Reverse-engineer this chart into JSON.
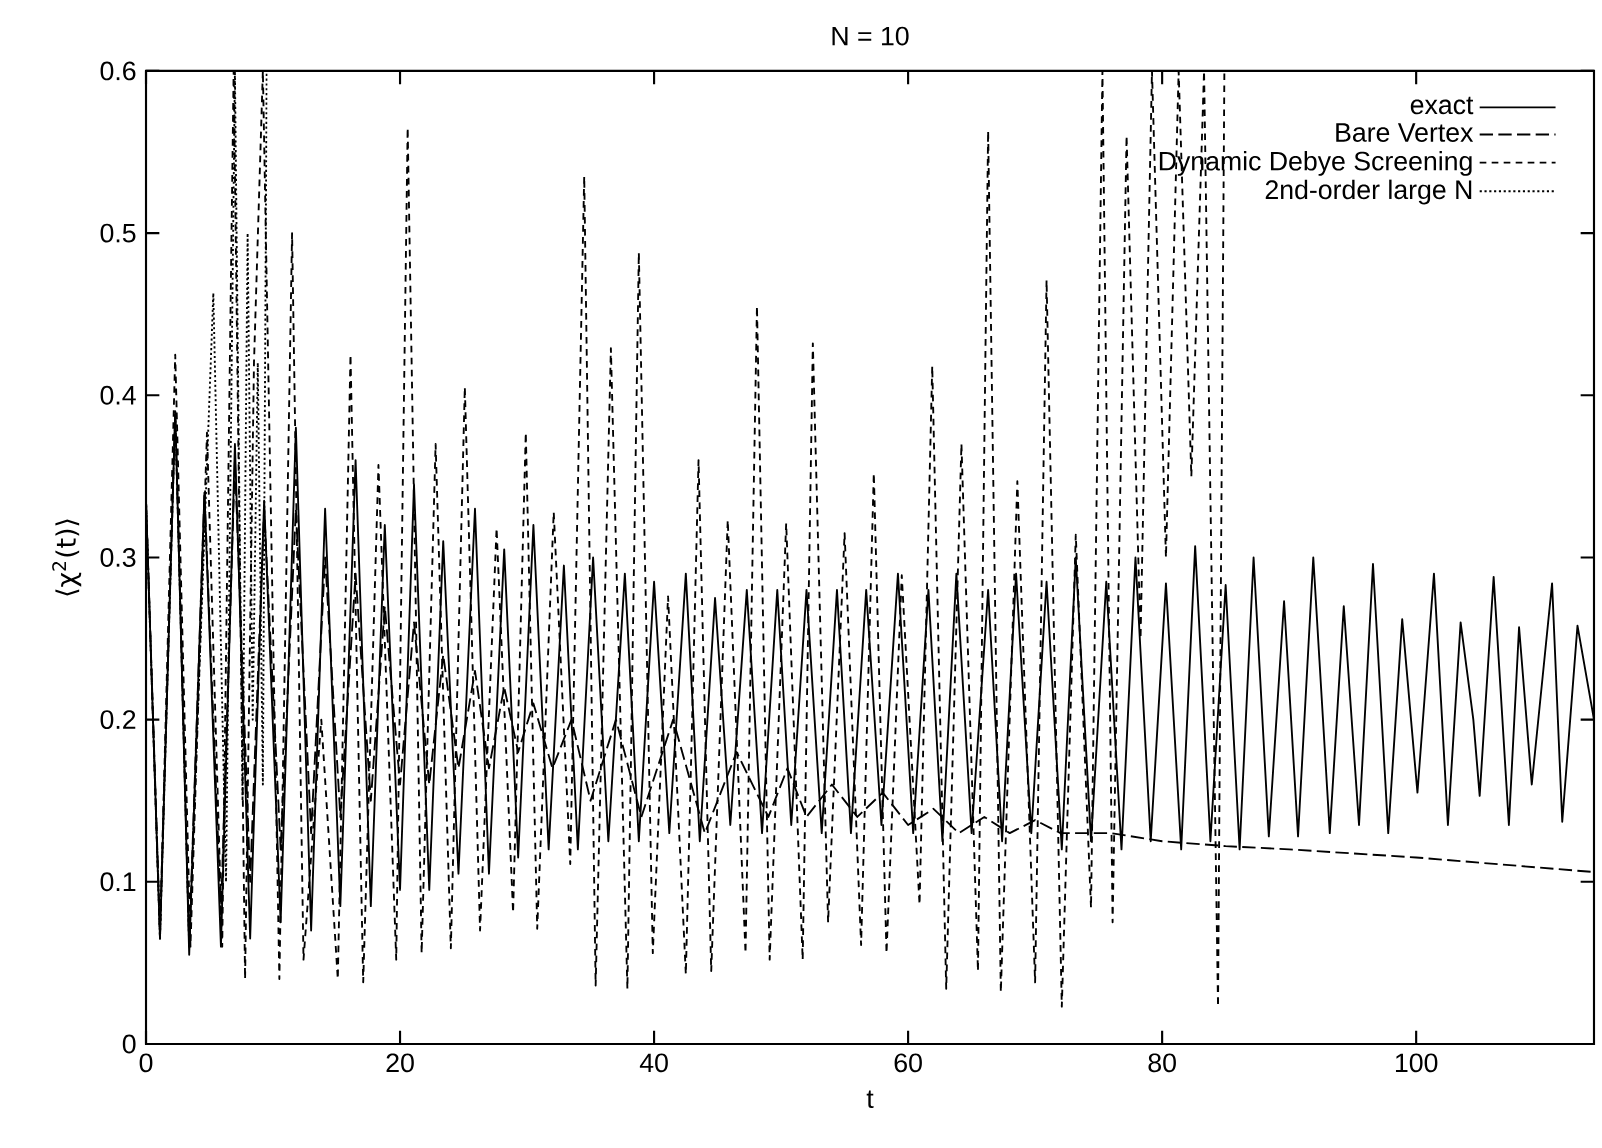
{
  "chart_data": {
    "type": "line",
    "title": "N = 10",
    "xlabel": "t",
    "ylabel": "⟨χ$^{2}$(t)⟩",
    "xlim": [
      0,
      114
    ],
    "ylim": [
      0,
      0.6
    ],
    "xticks": [
      0,
      20,
      40,
      60,
      80,
      100
    ],
    "yticks": [
      0,
      0.1,
      0.2,
      0.3,
      0.4,
      0.5,
      0.6
    ],
    "legend": "top right",
    "grid": false,
    "series": [
      {
        "name": "exact",
        "color": "#000000",
        "line_style": "solid",
        "x": [
          0,
          1.1,
          2.3,
          3.4,
          4.6,
          5.9,
          7.0,
          8.2,
          9.3,
          10.6,
          11.8,
          13.0,
          14.1,
          15.3,
          16.5,
          17.7,
          18.8,
          20.0,
          21.1,
          22.3,
          23.4,
          24.6,
          25.9,
          27.0,
          28.2,
          29.3,
          30.5,
          31.7,
          32.9,
          34.0,
          35.2,
          36.4,
          37.7,
          38.8,
          40.0,
          41.2,
          42.5,
          43.6,
          44.8,
          46.0,
          47.3,
          48.5,
          49.7,
          50.8,
          52.0,
          53.2,
          54.4,
          55.5,
          56.7,
          57.9,
          59.2,
          60.4,
          61.6,
          62.7,
          63.8,
          65.0,
          66.3,
          67.4,
          68.5,
          69.7,
          70.9,
          72.1,
          73.2,
          74.4,
          75.6,
          76.8,
          77.9,
          79.1,
          80.3,
          81.5,
          82.6,
          83.8,
          85.0,
          86.1,
          87.2,
          88.4,
          89.6,
          90.7,
          91.9,
          93.2,
          94.3,
          95.5,
          96.6,
          97.8,
          98.9,
          100.1,
          101.4,
          102.5,
          103.5,
          104.5,
          105.0,
          106.1,
          107.3,
          108.1,
          109.1,
          110.7,
          111.5,
          112.7,
          114
        ],
        "values": [
          0.335,
          0.065,
          0.39,
          0.055,
          0.34,
          0.06,
          0.37,
          0.065,
          0.335,
          0.075,
          0.38,
          0.07,
          0.33,
          0.085,
          0.36,
          0.085,
          0.32,
          0.095,
          0.345,
          0.095,
          0.31,
          0.105,
          0.33,
          0.105,
          0.305,
          0.115,
          0.32,
          0.12,
          0.295,
          0.12,
          0.3,
          0.125,
          0.29,
          0.125,
          0.285,
          0.13,
          0.29,
          0.125,
          0.275,
          0.135,
          0.28,
          0.13,
          0.28,
          0.135,
          0.28,
          0.13,
          0.28,
          0.13,
          0.28,
          0.135,
          0.29,
          0.13,
          0.28,
          0.125,
          0.29,
          0.13,
          0.28,
          0.125,
          0.29,
          0.13,
          0.285,
          0.12,
          0.3,
          0.125,
          0.285,
          0.12,
          0.3,
          0.125,
          0.284,
          0.12,
          0.307,
          0.125,
          0.283,
          0.12,
          0.3,
          0.128,
          0.273,
          0.128,
          0.3,
          0.13,
          0.27,
          0.135,
          0.296,
          0.13,
          0.262,
          0.155,
          0.29,
          0.135,
          0.26,
          0.2,
          0.153,
          0.288,
          0.135,
          0.257,
          0.16,
          0.284,
          0.137,
          0.258,
          0.2
        ]
      },
      {
        "name": "Bare Vertex",
        "color": "#000000",
        "line_style": "dashed",
        "x": [
          0,
          1.1,
          2.3,
          3.4,
          4.6,
          5.9,
          7.0,
          8.2,
          9.3,
          10.6,
          11.8,
          13.0,
          14.1,
          15.3,
          16.5,
          17.7,
          18.8,
          20.0,
          21.1,
          22.3,
          23.4,
          24.6,
          25.9,
          27.0,
          28.2,
          29.3,
          30.5,
          32,
          33.5,
          35,
          37,
          39,
          41.5,
          44,
          46.5,
          49,
          50.5,
          52,
          54,
          56,
          58,
          60,
          62,
          64,
          66,
          68,
          70,
          72,
          76,
          80,
          85,
          90,
          100,
          114
        ],
        "values": [
          0.335,
          0.07,
          0.39,
          0.06,
          0.34,
          0.08,
          0.36,
          0.1,
          0.33,
          0.12,
          0.33,
          0.13,
          0.3,
          0.14,
          0.29,
          0.15,
          0.27,
          0.16,
          0.26,
          0.16,
          0.24,
          0.17,
          0.23,
          0.17,
          0.22,
          0.18,
          0.21,
          0.17,
          0.2,
          0.15,
          0.2,
          0.14,
          0.2,
          0.13,
          0.18,
          0.14,
          0.17,
          0.14,
          0.16,
          0.14,
          0.155,
          0.135,
          0.145,
          0.13,
          0.14,
          0.13,
          0.138,
          0.13,
          0.13,
          0.125,
          0.122,
          0.12,
          0.115,
          0.106
        ]
      },
      {
        "name": "Dynamic Debye Screening",
        "color": "#000000",
        "line_style": "dashed",
        "x": [
          0,
          1.1,
          2.3,
          3.5,
          4.8,
          6.0,
          6.9,
          7.8,
          8.5,
          9.2,
          10.5,
          11.5,
          12.4,
          13.8,
          15.1,
          16.1,
          17.1,
          18.3,
          19.7,
          20.6,
          21.7,
          22.8,
          24.0,
          25.1,
          26.3,
          27.6,
          28.9,
          29.9,
          30.8,
          32.1,
          33.4,
          34.5,
          35.4,
          36.6,
          37.9,
          38.8,
          39.9,
          41.1,
          42.5,
          43.5,
          44.5,
          45.8,
          47.2,
          48.1,
          49.1,
          50.4,
          51.7,
          52.5,
          53.7,
          55.0,
          56.3,
          57.3,
          58.3,
          59.5,
          60.9,
          61.9,
          63.0,
          64.2,
          65.5,
          66.3,
          67.3,
          68.6,
          70.0,
          70.9,
          72.1,
          73.2,
          74.4,
          75.3,
          76.1,
          77.2,
          78.3,
          79.2,
          80.3,
          81.3,
          82.3,
          83.3,
          84.4,
          84.9
        ],
        "values": [
          0.335,
          0.065,
          0.425,
          0.06,
          0.377,
          0.06,
          0.6,
          0.04,
          0.42,
          0.6,
          0.04,
          0.5,
          0.052,
          0.2,
          0.04,
          0.425,
          0.038,
          0.357,
          0.052,
          0.565,
          0.056,
          0.37,
          0.059,
          0.405,
          0.07,
          0.318,
          0.081,
          0.377,
          0.071,
          0.328,
          0.111,
          0.535,
          0.036,
          0.429,
          0.034,
          0.488,
          0.056,
          0.276,
          0.043,
          0.36,
          0.045,
          0.323,
          0.056,
          0.455,
          0.052,
          0.321,
          0.052,
          0.432,
          0.075,
          0.315,
          0.061,
          0.352,
          0.056,
          0.289,
          0.086,
          0.418,
          0.034,
          0.37,
          0.045,
          0.563,
          0.032,
          0.347,
          0.038,
          0.471,
          0.023,
          0.314,
          0.084,
          0.6,
          0.075,
          0.56,
          0.25,
          0.6,
          0.3,
          0.6,
          0.35,
          0.6,
          0.023,
          0.6
        ]
      },
      {
        "name": "2nd-order large N",
        "color": "#000000",
        "line_style": "dotted",
        "x": [
          0,
          1.1,
          2.3,
          3.4,
          5.3,
          6.3,
          7.0,
          7.6,
          8.0,
          8.4,
          8.8,
          9.2,
          9.5
        ],
        "values": [
          0.335,
          0.065,
          0.39,
          0.06,
          0.463,
          0.1,
          0.6,
          0.15,
          0.5,
          0.2,
          0.42,
          0.16,
          0.6
        ]
      }
    ]
  }
}
